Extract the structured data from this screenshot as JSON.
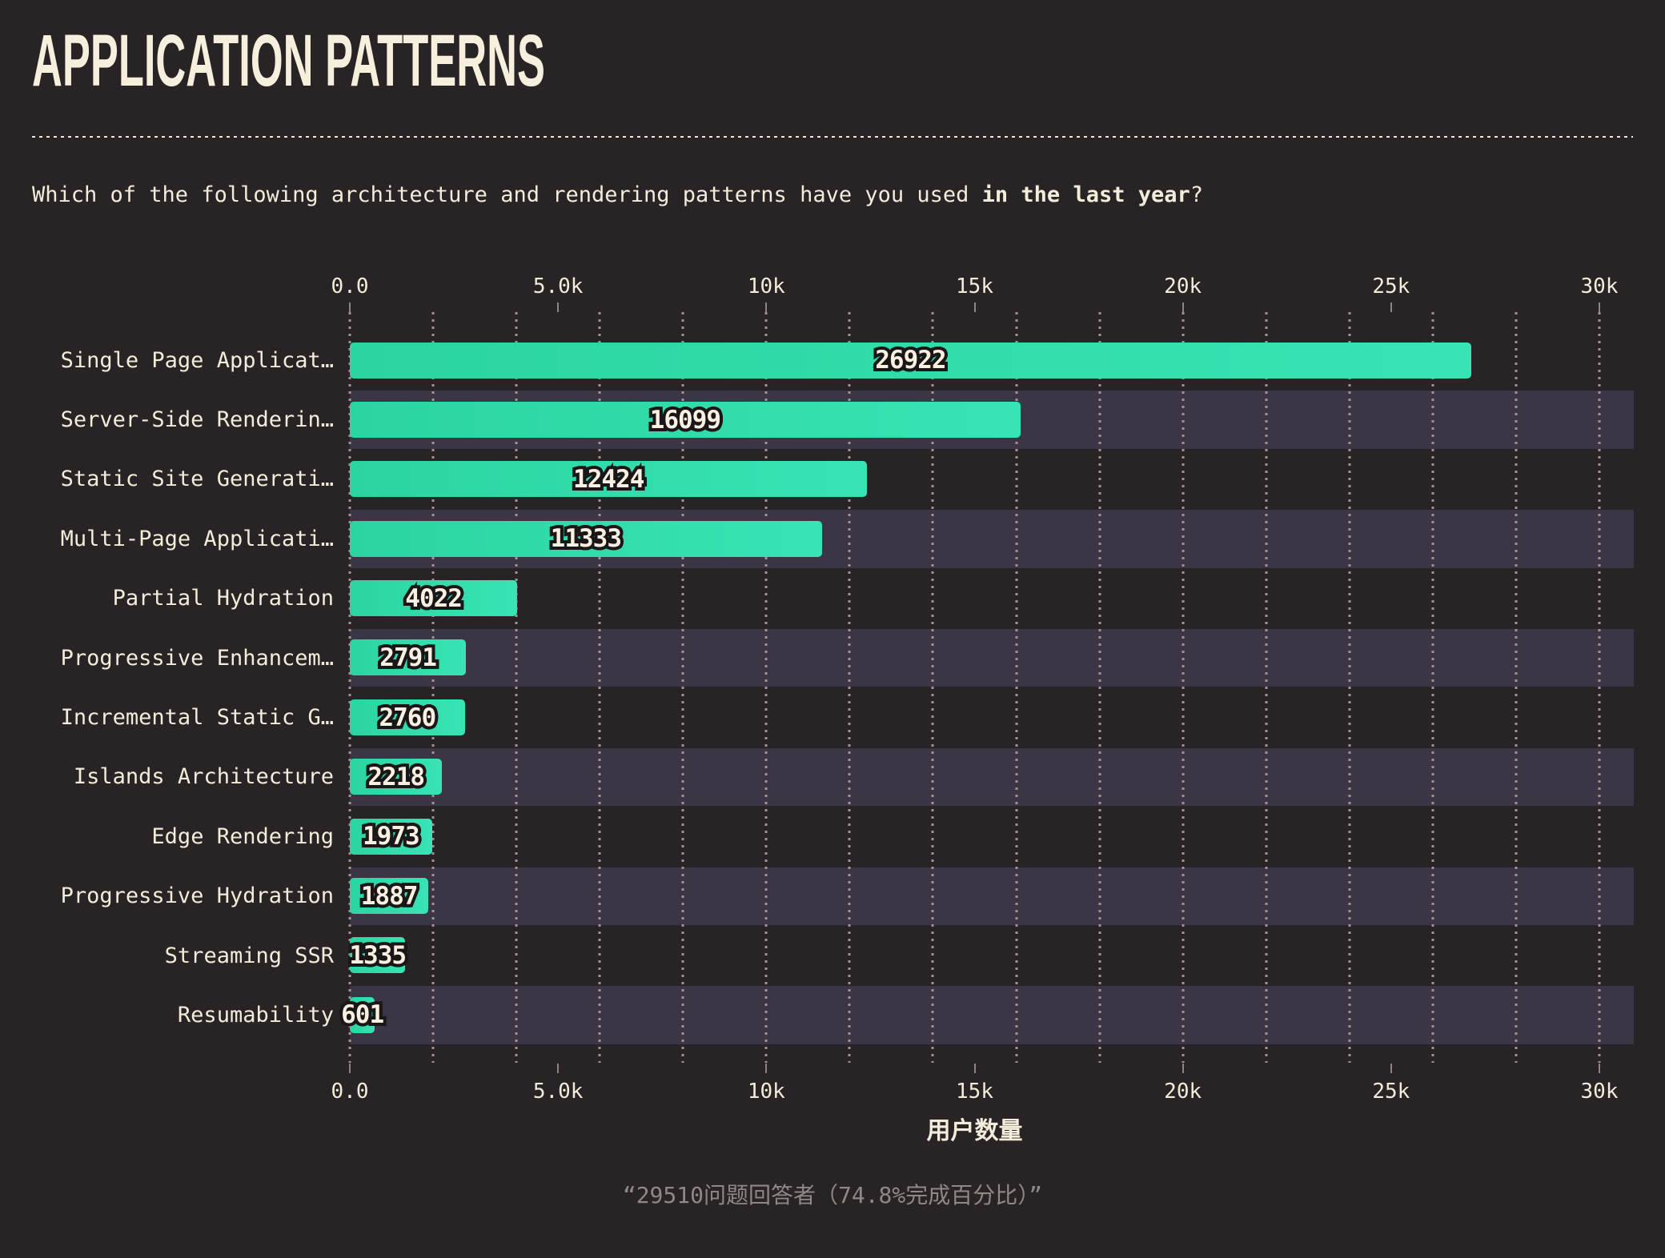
{
  "title": "APPLICATION PATTERNS",
  "question": {
    "prefix": "Which of the following architecture and rendering patterns have you used ",
    "bold": "in the last year",
    "suffix": "?"
  },
  "chart_data": {
    "type": "bar",
    "orientation": "horizontal",
    "categories": [
      "Single Page Applicat…",
      "Server-Side Renderin…",
      "Static Site Generati…",
      "Multi-Page Applicati…",
      "Partial Hydration",
      "Progressive Enhancem…",
      "Incremental Static G…",
      "Islands Architecture",
      "Edge Rendering",
      "Progressive Hydration",
      "Streaming SSR",
      "Resumability"
    ],
    "values": [
      26922,
      16099,
      12424,
      11333,
      4022,
      2791,
      2760,
      2218,
      1973,
      1887,
      1335,
      601
    ],
    "value_labels": [
      "26922",
      "16099",
      "12424",
      "11333",
      "4022",
      "2791",
      "2760",
      "2218",
      "1973",
      "1887",
      "1335",
      "601"
    ],
    "xlabel": "用户数量",
    "axis": {
      "min": 0,
      "max": 30000,
      "tick_values": [
        0,
        5000,
        10000,
        15000,
        20000,
        25000,
        30000
      ],
      "tick_labels": [
        "0.0",
        "5.0k",
        "10k",
        "15k",
        "20k",
        "25k",
        "30k"
      ],
      "minor_grid_step": 2000,
      "grid_style": "dotted-vertical",
      "tick_label_position": "top-and-bottom"
    },
    "legend": "none",
    "zebra_rows": "even rows have purple track background"
  },
  "caption": "“29510问题回答者（74.8%完成百分比）”",
  "colors": {
    "background": "#282324",
    "text_cream": "#f2ecdb",
    "muted_gray": "#8e8984",
    "bar_green_start": "#2bd4a0",
    "bar_green_end": "#38e4b4",
    "row_track": "#3b3545",
    "grid_dot": "#a09b98",
    "value_text": "#f8f1e1",
    "value_outline": "#1b1718",
    "tick_mark": "#8b8683"
  }
}
